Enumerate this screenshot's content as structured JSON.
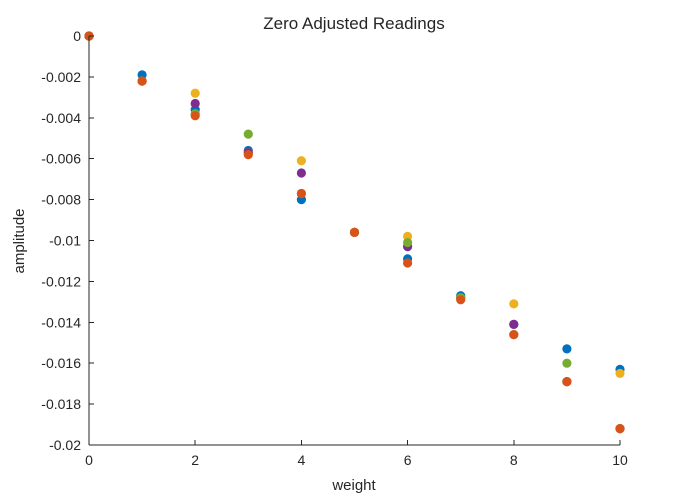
{
  "chart_data": {
    "type": "scatter",
    "title": "Zero Adjusted Readings",
    "xlabel": "weight",
    "ylabel": "amplitude",
    "xlim": [
      0,
      10
    ],
    "ylim": [
      -0.02,
      0
    ],
    "xticks": [
      0,
      2,
      4,
      6,
      8,
      10
    ],
    "xtick_labels": [
      "0",
      "2",
      "4",
      "6",
      "8",
      "10"
    ],
    "yticks": [
      0,
      -0.002,
      -0.004,
      -0.006,
      -0.008,
      -0.01,
      -0.012,
      -0.014,
      -0.016,
      -0.018,
      -0.02
    ],
    "ytick_labels": [
      "0",
      "-0.002",
      "-0.004",
      "-0.006",
      "-0.008",
      "-0.01",
      "-0.012",
      "-0.014",
      "-0.016",
      "-0.018",
      "-0.02"
    ],
    "grid": false,
    "legend": false,
    "series": [
      {
        "color": "#0072BD",
        "x": [
          0,
          1,
          2,
          3,
          4,
          5,
          6,
          7,
          8,
          9,
          10
        ],
        "y": [
          0,
          -0.0019,
          -0.0036,
          -0.0056,
          -0.008,
          -0.0096,
          -0.0109,
          -0.0127,
          -0.0141,
          -0.0153,
          -0.0163
        ]
      },
      {
        "color": "#EDB120",
        "x": [
          0,
          1,
          2,
          3,
          4,
          5,
          6,
          7,
          8,
          9,
          10
        ],
        "y": [
          0,
          -0.0022,
          -0.0028,
          -0.0057,
          -0.0061,
          -0.0096,
          -0.0098,
          -0.0128,
          -0.0131,
          -0.0169,
          -0.0165
        ]
      },
      {
        "color": "#7E2F8E",
        "x": [
          0,
          1,
          2,
          3,
          4,
          5,
          6,
          7,
          8,
          9,
          10
        ],
        "y": [
          0,
          -0.0022,
          -0.0033,
          -0.0057,
          -0.0067,
          -0.0096,
          -0.0103,
          -0.0128,
          -0.0141,
          -0.0169,
          -0.0192
        ]
      },
      {
        "color": "#77AC30",
        "x": [
          0,
          1,
          2,
          3,
          4,
          5,
          6,
          7,
          8,
          9,
          10
        ],
        "y": [
          0,
          -0.0022,
          -0.0038,
          -0.0048,
          -0.0077,
          -0.0096,
          -0.0101,
          -0.0128,
          -0.0146,
          -0.016,
          -0.0192
        ]
      },
      {
        "color": "#D95319",
        "x": [
          0,
          1,
          2,
          3,
          4,
          5,
          6,
          7,
          8,
          9,
          10
        ],
        "y": [
          0,
          -0.0022,
          -0.0039,
          -0.0058,
          -0.0077,
          -0.0096,
          -0.0111,
          -0.0129,
          -0.0146,
          -0.0169,
          -0.0192
        ]
      }
    ]
  }
}
